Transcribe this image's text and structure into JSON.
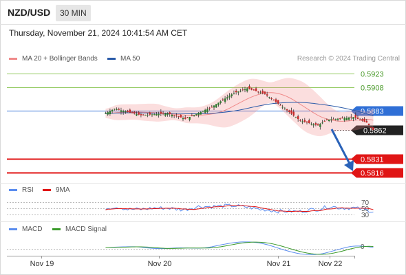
{
  "header": {
    "pair": "NZD/USD",
    "timeframe": "30 MIN"
  },
  "datetime": "Thursday, November 21, 2024 10:41:54 AM CET",
  "legend": {
    "bollinger_label": "MA 20 + Bollinger Bands",
    "ma50_label": "MA 50",
    "credit": "Research © 2024 Trading Central"
  },
  "levels": [
    {
      "value": "0.5923",
      "style": "plain",
      "color": "#8ec85a"
    },
    {
      "value": "0.5908",
      "style": "plain",
      "color": "#8ec85a"
    },
    {
      "value": "0.5883",
      "style": "badge",
      "color": "#2f6fd6"
    },
    {
      "value": "0.5862",
      "style": "badge",
      "color": "#222222"
    },
    {
      "value": "0.5831",
      "style": "badge",
      "color": "#e01515"
    },
    {
      "value": "0.5816",
      "style": "badge",
      "color": "#e01515"
    }
  ],
  "rsi_panel": {
    "label": "RSI",
    "ma_label": "9MA",
    "ticks": [
      "70",
      "50",
      "30"
    ]
  },
  "macd_panel": {
    "label": "MACD",
    "signal_label": "MACD Signal",
    "ticks": [
      "0"
    ]
  },
  "x_axis": {
    "labels": [
      "Nov 19",
      "Nov 20",
      "Nov 21",
      "Nov 22"
    ]
  },
  "colors": {
    "bollinger": "#f08a8a",
    "ma50": "#2a5aa8",
    "rsi": "#5b8def",
    "rsi_ma": "#e01515",
    "macd": "#5b8def",
    "macd_signal": "#3a9a2a",
    "candle_up": "#2d7a2d",
    "candle_down": "#c62828",
    "arrow": "#2a62b8"
  },
  "chart_data": {
    "type": "candlestick",
    "instrument": "NZD/USD",
    "ylim": [
      0.581,
      0.593
    ],
    "horizontal_levels": [
      0.5923,
      0.5908,
      0.5883,
      0.5862,
      0.5831,
      0.5816
    ],
    "current_price": 0.5862,
    "forecast_direction": "down",
    "close_path": [
      {
        "x": "Nov 18 22:00",
        "y": 0.588
      },
      {
        "x": "Nov 19 00:00",
        "y": 0.5885
      },
      {
        "x": "Nov 19 06:00",
        "y": 0.5878
      },
      {
        "x": "Nov 19 12:00",
        "y": 0.588
      },
      {
        "x": "Nov 19 16:00",
        "y": 0.5874
      },
      {
        "x": "Nov 19 22:00",
        "y": 0.5887
      },
      {
        "x": "Nov 20 00:00",
        "y": 0.5893
      },
      {
        "x": "Nov 20 03:00",
        "y": 0.5902
      },
      {
        "x": "Nov 20 06:00",
        "y": 0.5907
      },
      {
        "x": "Nov 20 10:00",
        "y": 0.5901
      },
      {
        "x": "Nov 20 14:00",
        "y": 0.5887
      },
      {
        "x": "Nov 20 18:00",
        "y": 0.5872
      },
      {
        "x": "Nov 20 22:00",
        "y": 0.5867
      },
      {
        "x": "Nov 21 00:00",
        "y": 0.5873
      },
      {
        "x": "Nov 21 06:00",
        "y": 0.5876
      },
      {
        "x": "Nov 21 09:00",
        "y": 0.587
      },
      {
        "x": "Nov 21 10:30",
        "y": 0.5862
      }
    ]
  }
}
